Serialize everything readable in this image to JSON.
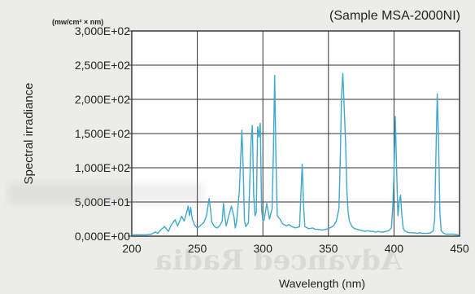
{
  "chart_data": {
    "type": "line",
    "title": "(Sample MSA-2000NI)",
    "unit_label": "(mw/cm² × nm)",
    "xlabel": "Wavelength (nm)",
    "ylabel": "Spectral irradiance",
    "xlim": [
      200,
      450
    ],
    "ylim": [
      0,
      300
    ],
    "x_ticks": [
      200,
      250,
      300,
      350,
      400,
      450
    ],
    "x_tick_labels": [
      "200",
      "250",
      "300",
      "350",
      "400",
      "450"
    ],
    "y_ticks": [
      0,
      50,
      100,
      150,
      200,
      250,
      300
    ],
    "y_tick_labels": [
      "0,000E+00",
      "5,000E+01",
      "1,000E+02",
      "1,500E+02",
      "2,000E+02",
      "2,500E+02",
      "3,000E+02"
    ],
    "grid": true,
    "line_color": "#3fa8cc",
    "series": [
      {
        "x": [
          200,
          210,
          215,
          218,
          220,
          222,
          225,
          228,
          230,
          233,
          235,
          238,
          240,
          242,
          243,
          244,
          245,
          246,
          248,
          250,
          252,
          255,
          257,
          259,
          260,
          261,
          263,
          265,
          267,
          269,
          270,
          271,
          272,
          274,
          276,
          278,
          279,
          280,
          282,
          284,
          285,
          286,
          287,
          289,
          291,
          292,
          293,
          294,
          295,
          296,
          297,
          298,
          299,
          300,
          301,
          302,
          303,
          305,
          307,
          308,
          309,
          310,
          311,
          313,
          315,
          318,
          320,
          322,
          325,
          328,
          329,
          330,
          331,
          332,
          335,
          338,
          340,
          342,
          345,
          348,
          350,
          352,
          354,
          356,
          358,
          359,
          360,
          361,
          362,
          363,
          364,
          365,
          366,
          368,
          370,
          372,
          374,
          376,
          378,
          380,
          382,
          384,
          386,
          388,
          390,
          392,
          394,
          396,
          398,
          399,
          400,
          401,
          402,
          403,
          404,
          405,
          406,
          407,
          408,
          410,
          412,
          415,
          418,
          420,
          422,
          425,
          428,
          430,
          431,
          432,
          433,
          434,
          435,
          436,
          438,
          440,
          442,
          445,
          448,
          450
        ],
        "y": [
          2,
          2,
          3,
          6,
          4,
          9,
          14,
          7,
          16,
          24,
          15,
          29,
          22,
          36,
          44,
          30,
          42,
          26,
          16,
          12,
          15,
          20,
          30,
          55,
          40,
          21,
          14,
          12,
          15,
          22,
          48,
          28,
          15,
          30,
          44,
          28,
          12,
          22,
          65,
          155,
          100,
          22,
          14,
          20,
          140,
          162,
          60,
          30,
          35,
          160,
          145,
          165,
          40,
          22,
          24,
          36,
          48,
          25,
          40,
          120,
          235,
          110,
          30,
          25,
          18,
          15,
          17,
          14,
          12,
          14,
          60,
          105,
          45,
          14,
          11,
          12,
          10,
          10,
          9,
          10,
          11,
          13,
          15,
          22,
          40,
          110,
          205,
          238,
          190,
          140,
          70,
          35,
          22,
          14,
          11,
          10,
          9,
          8,
          7,
          8,
          7,
          7,
          6,
          7,
          6,
          6,
          7,
          8,
          12,
          40,
          90,
          175,
          100,
          30,
          50,
          60,
          30,
          12,
          8,
          6,
          5,
          5,
          4,
          5,
          4,
          4,
          5,
          8,
          25,
          120,
          208,
          140,
          35,
          8,
          4,
          3,
          3,
          3,
          2,
          2
        ]
      }
    ]
  }
}
